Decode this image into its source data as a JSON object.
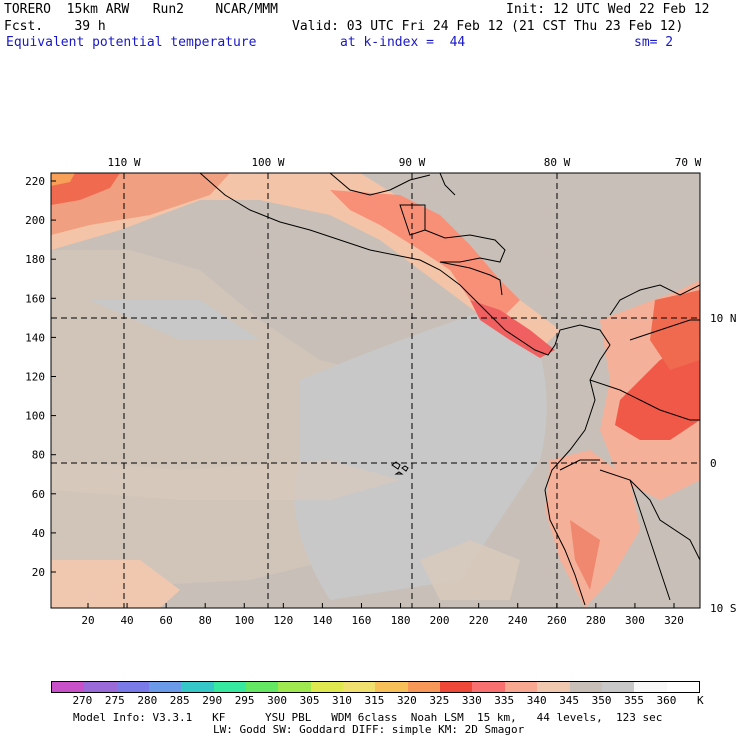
{
  "header": {
    "line1_left": "TORERO  15km ARW   Run2    NCAR/MMM",
    "line1_right": "Init: 12 UTC Wed 22 Feb 12",
    "line2_left": "Fcst.    39 h",
    "line2_right": "Valid: 03 UTC Fri 24 Feb 12 (21 CST Thu 23 Feb 12)",
    "field": "Equivalent potential temperature",
    "level": "at k-index =  44",
    "smooth": "sm= 2"
  },
  "map": {
    "lon_labels": [
      "110 W",
      "100 W",
      "90 W",
      "80 W",
      "70 W"
    ],
    "lat_labels": [
      "10 N",
      "0",
      "10 S"
    ],
    "y_ticks": [
      "220",
      "200",
      "180",
      "160",
      "140",
      "120",
      "100",
      "80",
      "60",
      "40",
      "20"
    ],
    "x_ticks": [
      "20",
      "40",
      "60",
      "80",
      "100",
      "120",
      "140",
      "160",
      "180",
      "200",
      "220",
      "240",
      "260",
      "280",
      "300",
      "320"
    ]
  },
  "legend": {
    "unit": "K",
    "labels": [
      "270",
      "275",
      "280",
      "285",
      "290",
      "295",
      "300",
      "305",
      "310",
      "315",
      "320",
      "325",
      "330",
      "335",
      "340",
      "345",
      "350",
      "355",
      "360"
    ],
    "colors": [
      "#c850c8",
      "#9a6ad8",
      "#7a7ae8",
      "#6a9ae8",
      "#36c8c8",
      "#36e8a0",
      "#64e864",
      "#a0e850",
      "#e0e850",
      "#f0e070",
      "#f8c058",
      "#f89858",
      "#f04838",
      "#f87070",
      "#f8a890",
      "#f0c8b0",
      "#c8c0b8",
      "#c8c8c8",
      "#f8f8f8",
      "#ffffff"
    ]
  },
  "footer": {
    "line1": "Model Info: V3.3.1   KF      YSU PBL   WDM 6class  Noah LSM  15 km,   44 levels,  123 sec",
    "line2": "LW: Godd SW: Goddard DIFF: simple KM: 2D Smagor"
  }
}
